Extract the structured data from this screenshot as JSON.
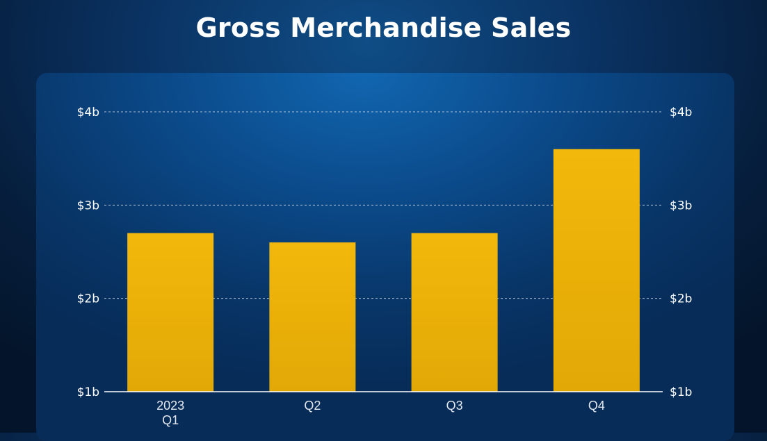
{
  "title": "Gross Merchandise Sales",
  "colors": {
    "bar": "#f1b70a",
    "bar_bottom": "#e3a906",
    "grid": "#c9d6e6",
    "axis": "#ffffff"
  },
  "chart_data": {
    "type": "bar",
    "title": "Gross Merchandise Sales",
    "categories": [
      "Q1",
      "Q2",
      "Q3",
      "Q4"
    ],
    "category_labels": [
      [
        "2023",
        "Q1"
      ],
      [
        "Q2"
      ],
      [
        "Q3"
      ],
      [
        "Q4"
      ]
    ],
    "values": [
      2.7,
      2.6,
      2.7,
      3.6
    ],
    "unit": "$ billions",
    "ylim": [
      1,
      4
    ],
    "yticks": [
      1,
      2,
      3,
      4
    ],
    "ytick_labels": [
      "$1b",
      "$2b",
      "$3b",
      "$4b"
    ],
    "y_axis_sides": [
      "left",
      "right"
    ],
    "grid": true,
    "legend": "none"
  }
}
